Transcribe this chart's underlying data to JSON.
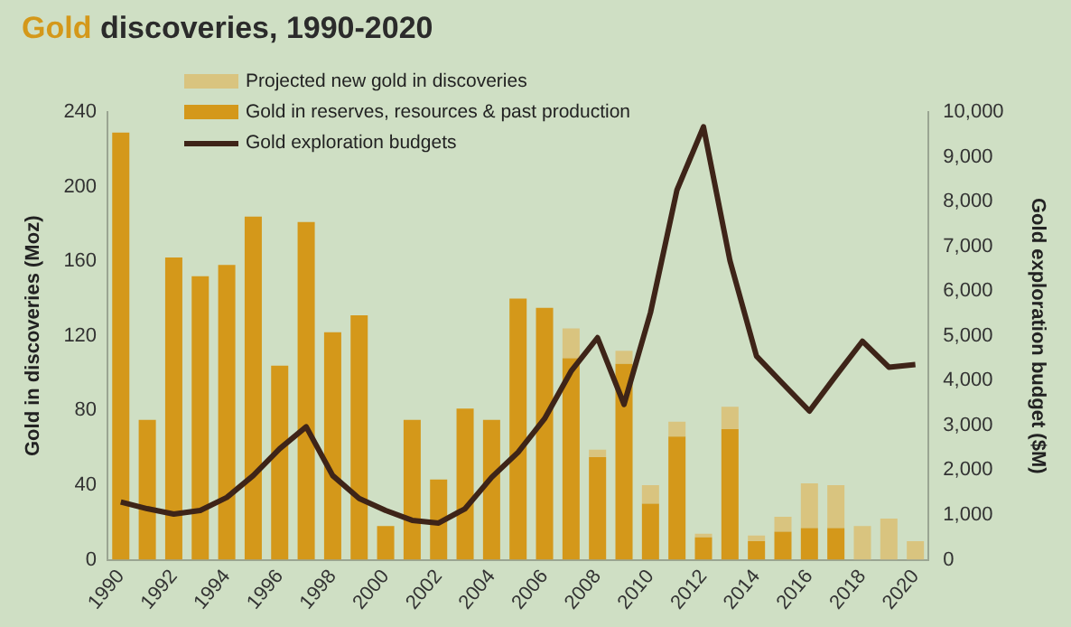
{
  "chart_data": {
    "type": "bar",
    "title": "Gold discoveries, 1990-2020",
    "ylabel": "Gold in discoveries (Moz)",
    "y2label": "Gold exploration budget ($M)",
    "categories": [
      "1990",
      null,
      "1992",
      null,
      "1994",
      null,
      "1996",
      null,
      "1998",
      null,
      "2000",
      null,
      "2002",
      null,
      "2004",
      null,
      "2006",
      null,
      "2008",
      null,
      "2010",
      null,
      "2012",
      null,
      "2014",
      null,
      "2016",
      null,
      "2018",
      null,
      "2020"
    ],
    "stacked": true,
    "series": [
      {
        "name": "Gold in reserves, resources & past production",
        "color": "#d4981a",
        "values": [
          229,
          75,
          162,
          152,
          158,
          184,
          104,
          181,
          122,
          131,
          18,
          75,
          43,
          81,
          75,
          140,
          135,
          108,
          55,
          105,
          30,
          66,
          12,
          70,
          10,
          15,
          17,
          17,
          0,
          0,
          0
        ]
      },
      {
        "name": "Projected new gold in discoveries",
        "color": "#d9c47f",
        "values": [
          0,
          0,
          0,
          0,
          0,
          0,
          0,
          0,
          0,
          0,
          0,
          0,
          0,
          0,
          0,
          0,
          0,
          16,
          4,
          7,
          10,
          8,
          2,
          12,
          3,
          8,
          24,
          23,
          18,
          22,
          10
        ]
      },
      {
        "name": "Gold exploration budgets",
        "type": "line",
        "axis": "y2",
        "color": "#3e2418",
        "values": [
          1290,
          1140,
          1020,
          1100,
          1390,
          1880,
          2480,
          2970,
          1880,
          1370,
          1100,
          880,
          820,
          1140,
          1840,
          2400,
          3150,
          4210,
          4960,
          3470,
          5520,
          8260,
          9670,
          6680,
          4550,
          3930,
          3320,
          4110,
          4880,
          4300,
          4360
        ]
      }
    ],
    "ylim": [
      0,
      240
    ],
    "yticks": [
      0,
      40,
      80,
      120,
      160,
      200,
      240
    ],
    "y2lim": [
      0,
      10000
    ],
    "y2ticks": [
      {
        "value": 0,
        "label": "0"
      },
      {
        "value": 1000,
        "label": "1,000"
      },
      {
        "value": 2000,
        "label": "2,000"
      },
      {
        "value": 3000,
        "label": "3,000"
      },
      {
        "value": 4000,
        "label": "4,000"
      },
      {
        "value": 5000,
        "label": "5,000"
      },
      {
        "value": 6000,
        "label": "6,000"
      },
      {
        "value": 7000,
        "label": "7,000"
      },
      {
        "value": 8000,
        "label": "8,000"
      },
      {
        "value": 9000,
        "label": "9,000"
      },
      {
        "value": 10000,
        "label": "10,000"
      }
    ],
    "grid": false,
    "legend": "top left",
    "marker": "none"
  }
}
